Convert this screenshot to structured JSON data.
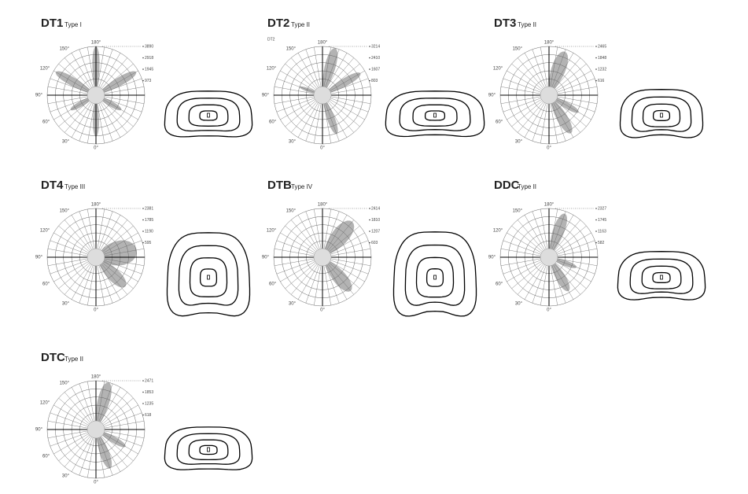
{
  "angle_labels": [
    "180°",
    "150°",
    "120°",
    "90°",
    "60°",
    "30°",
    "0°"
  ],
  "panels": [
    {
      "title": "DT1",
      "type": "Type I",
      "values": [
        "3890",
        "2918",
        "1945",
        "973"
      ]
    },
    {
      "title": "DT2",
      "type": "Type II",
      "plot_label": "DT2",
      "values": [
        "3214",
        "2410",
        "1607",
        "803"
      ]
    },
    {
      "title": "DT3",
      "type": "Type II",
      "values": [
        "2465",
        "1848",
        "1232",
        "616"
      ]
    },
    {
      "title": "DT4",
      "type": "Type III",
      "values": [
        "2381",
        "1785",
        "1190",
        "595"
      ]
    },
    {
      "title": "DTB",
      "type": "Type IV",
      "values": [
        "2414",
        "1810",
        "1207",
        "603"
      ]
    },
    {
      "title": "DDC",
      "type": "Type II",
      "values": [
        "2327",
        "1745",
        "1163",
        "582"
      ]
    },
    {
      "title": "DTC",
      "type": "Type II",
      "values": [
        "2471",
        "1853",
        "1235",
        "618"
      ]
    }
  ]
}
